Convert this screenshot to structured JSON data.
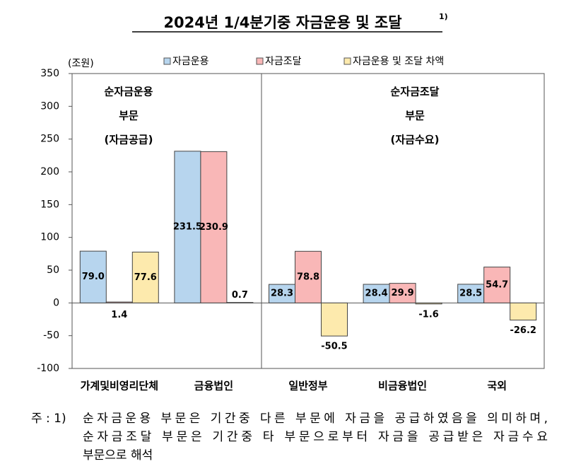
{
  "chart_data": {
    "type": "bar",
    "title": "2024년 1/4분기중 자금운용 및 조달",
    "title_note": "1)",
    "y_unit": "(조원)",
    "categories": [
      "가계및비영리단체",
      "금융법인",
      "일반정부",
      "비금융법인",
      "국외"
    ],
    "series": [
      {
        "name": "자금운용",
        "color": "#b7d5ee",
        "values": [
          79.0,
          231.5,
          28.3,
          28.4,
          28.5
        ],
        "value_labels": [
          "79.0",
          "231.5",
          "28.3",
          "28.4",
          "28.5"
        ]
      },
      {
        "name": "자금조달",
        "color": "#f9b7b7",
        "values": [
          1.4,
          230.9,
          78.8,
          29.9,
          54.7
        ],
        "value_labels": [
          "1.4",
          "230.9",
          "78.8",
          "29.9",
          "54.7"
        ]
      },
      {
        "name": "자금운용 및 조달 차액",
        "color": "#fdeaad",
        "values": [
          77.6,
          0.7,
          -50.5,
          -1.6,
          -26.2
        ],
        "value_labels": [
          "77.6",
          "0.7",
          "-50.5",
          "-1.6",
          "-26.2"
        ]
      }
    ],
    "ylim": [
      -100,
      350
    ],
    "yticks": [
      -100,
      -50,
      0,
      50,
      100,
      150,
      200,
      250,
      300,
      350
    ],
    "annotations": [
      [
        "순자금운용",
        "부문",
        "(자금공급)"
      ],
      [
        "순자금조달",
        "부문",
        "(자금수요)"
      ]
    ],
    "note": {
      "prefix": "주 : 1)",
      "lines": [
        "순자금운용 부문은 기간중 다른 부문에 자금을 공급하였음을 의미하며,",
        "순자금조달 부문은 기간중 타 부문으로부터 자금을 공급받은 자금수요",
        "부문으로 해석"
      ]
    }
  }
}
